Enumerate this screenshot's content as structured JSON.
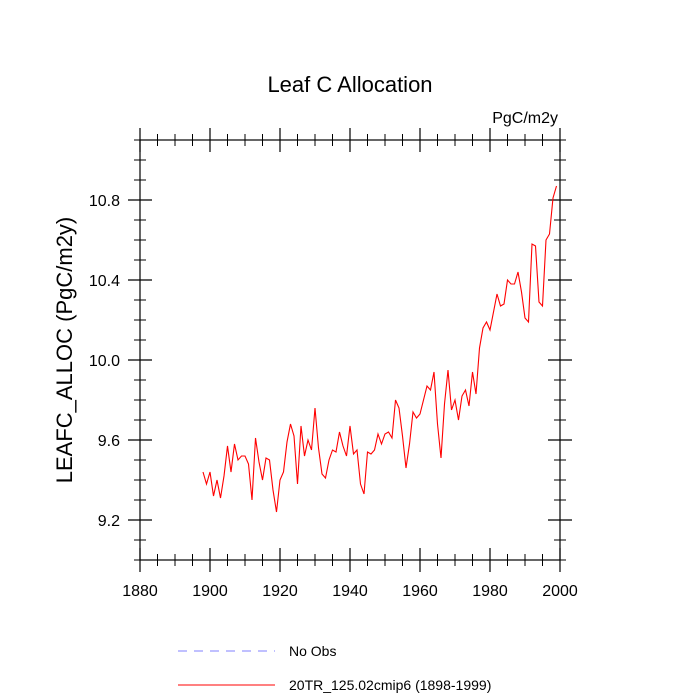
{
  "chart_data": {
    "type": "line",
    "title": "Leaf C Allocation",
    "units_label": "PgC/m2y",
    "ylabel": "LEAFC_ALLOC  (PgC/m2y)",
    "xlabel": "",
    "xlim": [
      1880,
      2000
    ],
    "ylim": [
      9.0,
      11.1
    ],
    "x_ticks": [
      1880,
      1900,
      1920,
      1940,
      1960,
      1980,
      2000
    ],
    "x_tick_labels": [
      "1880",
      "1900",
      "1920",
      "1940",
      "1960",
      "1980",
      "2000"
    ],
    "y_ticks": [
      9.2,
      9.6,
      10.0,
      10.4,
      10.8
    ],
    "y_tick_labels": [
      "9.2",
      "9.6",
      "10.0",
      "10.4",
      "10.8"
    ],
    "x_minor_step": 5,
    "y_minor_step": 0.1,
    "grid": false,
    "legend_position": "bottom-center",
    "legend": [
      {
        "name": "No Obs",
        "color": "#8080ff",
        "dash": true
      },
      {
        "name": "20TR_125.02cmip6 (1898-1999)",
        "color": "#ff0000",
        "dash": false
      }
    ],
    "series": [
      {
        "name": "20TR_125.02cmip6 (1898-1999)",
        "color": "#ff0000",
        "x": [
          1898,
          1899,
          1900,
          1901,
          1902,
          1903,
          1904,
          1905,
          1906,
          1907,
          1908,
          1909,
          1910,
          1911,
          1912,
          1913,
          1914,
          1915,
          1916,
          1917,
          1918,
          1919,
          1920,
          1921,
          1922,
          1923,
          1924,
          1925,
          1926,
          1927,
          1928,
          1929,
          1930,
          1931,
          1932,
          1933,
          1934,
          1935,
          1936,
          1937,
          1938,
          1939,
          1940,
          1941,
          1942,
          1943,
          1944,
          1945,
          1946,
          1947,
          1948,
          1949,
          1950,
          1951,
          1952,
          1953,
          1954,
          1955,
          1956,
          1957,
          1958,
          1959,
          1960,
          1961,
          1962,
          1963,
          1964,
          1965,
          1966,
          1967,
          1968,
          1969,
          1970,
          1971,
          1972,
          1973,
          1974,
          1975,
          1976,
          1977,
          1978,
          1979,
          1980,
          1981,
          1982,
          1983,
          1984,
          1985,
          1986,
          1987,
          1988,
          1989,
          1990,
          1991,
          1992,
          1993,
          1994,
          1995,
          1996,
          1997,
          1998,
          1999
        ],
        "values": [
          9.44,
          9.38,
          9.44,
          9.32,
          9.4,
          9.31,
          9.42,
          9.57,
          9.44,
          9.58,
          9.5,
          9.52,
          9.52,
          9.48,
          9.3,
          9.61,
          9.49,
          9.4,
          9.51,
          9.5,
          9.35,
          9.24,
          9.4,
          9.44,
          9.59,
          9.68,
          9.62,
          9.38,
          9.67,
          9.52,
          9.6,
          9.55,
          9.76,
          9.56,
          9.43,
          9.41,
          9.5,
          9.55,
          9.54,
          9.64,
          9.57,
          9.52,
          9.67,
          9.53,
          9.55,
          9.38,
          9.33,
          9.54,
          9.53,
          9.55,
          9.63,
          9.58,
          9.63,
          9.64,
          9.61,
          9.8,
          9.76,
          9.62,
          9.46,
          9.58,
          9.74,
          9.71,
          9.73,
          9.8,
          9.87,
          9.85,
          9.94,
          9.68,
          9.51,
          9.78,
          9.95,
          9.75,
          9.8,
          9.7,
          9.82,
          9.85,
          9.77,
          9.94,
          9.83,
          10.06,
          10.16,
          10.19,
          10.15,
          10.24,
          10.33,
          10.27,
          10.28,
          10.4,
          10.38,
          10.38,
          10.44,
          10.34,
          10.21,
          10.19,
          10.58,
          10.57,
          10.29,
          10.27,
          10.6,
          10.63,
          10.81,
          10.87
        ]
      }
    ]
  }
}
